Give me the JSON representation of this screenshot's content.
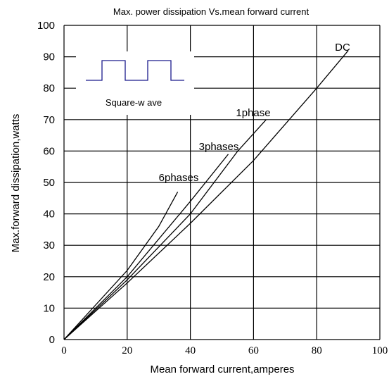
{
  "chart_data": {
    "type": "line",
    "title": "Max. power dissipation  Vs.mean forward current",
    "xlabel": "Mean forward  current,amperes",
    "ylabel": "Max.forward  dissipation,watts",
    "xlim": [
      0,
      100
    ],
    "ylim": [
      0,
      100
    ],
    "x_ticks": [
      "0",
      "20",
      "40",
      "60",
      "80",
      "100"
    ],
    "y_ticks": [
      "0",
      "10",
      "20",
      "30",
      "40",
      "50",
      "60",
      "70",
      "80",
      "90",
      "100"
    ],
    "grid": true,
    "series": [
      {
        "name": "DC",
        "points": [
          [
            0,
            0
          ],
          [
            20,
            18
          ],
          [
            40,
            37
          ],
          [
            60,
            57
          ],
          [
            80,
            80
          ],
          [
            90,
            92
          ]
        ]
      },
      {
        "name": "1phase",
        "points": [
          [
            0,
            0
          ],
          [
            20,
            19
          ],
          [
            40,
            40
          ],
          [
            55,
            60
          ],
          [
            64,
            70
          ]
        ]
      },
      {
        "name": "3phases",
        "points": [
          [
            0,
            0
          ],
          [
            20,
            20
          ],
          [
            40,
            44
          ],
          [
            52,
            59
          ]
        ]
      },
      {
        "name": "6phases",
        "points": [
          [
            0,
            0
          ],
          [
            20,
            22
          ],
          [
            30,
            36
          ],
          [
            36,
            47
          ]
        ]
      }
    ],
    "inset": {
      "label": "Square-w ave",
      "waveform": "square-wave"
    },
    "line_color": "#000000",
    "inset_wave_color": "#1a1a8c"
  }
}
